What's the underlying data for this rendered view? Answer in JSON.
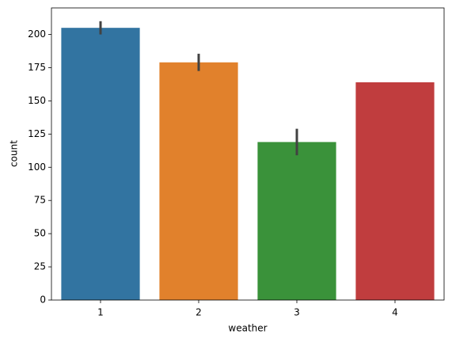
{
  "chart_data": {
    "type": "bar",
    "x_label": "weather",
    "y_label": "count",
    "categories": [
      "1",
      "2",
      "3",
      "4"
    ],
    "values": [
      205,
      179,
      119,
      164
    ],
    "errors": [
      5,
      6.5,
      10,
      null
    ],
    "colors": [
      "#3274a1",
      "#e1812c",
      "#3a923a",
      "#c03d3e"
    ],
    "error_color": "#424242",
    "ylim": [
      0,
      220
    ],
    "yticks": [
      0,
      25,
      50,
      75,
      100,
      125,
      150,
      175,
      200
    ],
    "grid": false
  }
}
